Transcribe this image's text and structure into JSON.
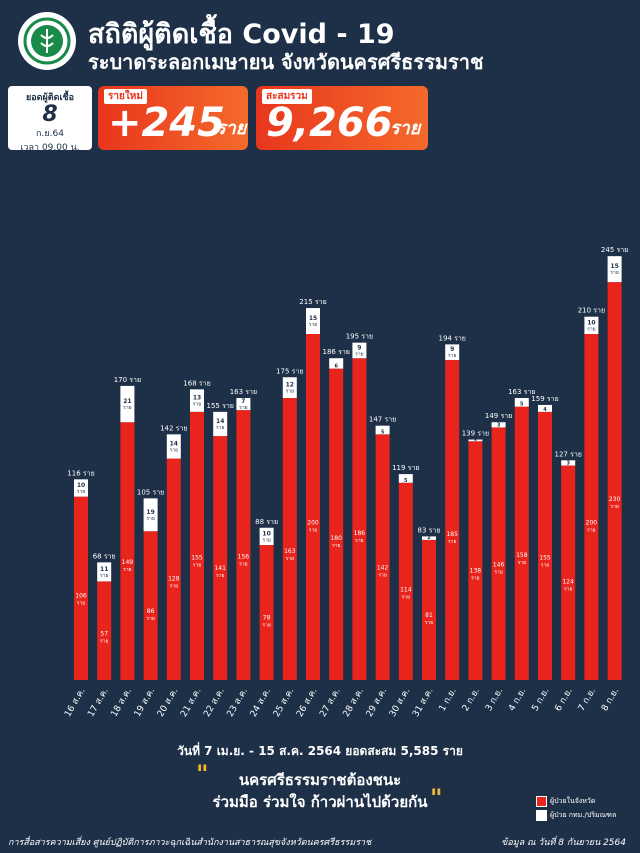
{
  "header": {
    "title": "สถิติผู้ติดเชื้อ Covid - 19",
    "subtitle": "ระบาดระลอกเมษายน จังหวัดนครศรีธรรมราช",
    "logo_icon": "ministry-of-public-health-logo"
  },
  "date_box": {
    "label": "ยอดผู้ติดเชื้อ",
    "day": "8",
    "month": "ก.ย.64",
    "time": "เวลา 09.00 น."
  },
  "new_cases": {
    "label": "รายใหม่",
    "value": "+245",
    "unit": "ราย"
  },
  "total_cases": {
    "label": "สะสมรวม",
    "value": "9,266",
    "unit": "ราย"
  },
  "colors": {
    "background": "#1d3047",
    "bar_in_province": "#e8241c",
    "bar_other": "#ffffff",
    "accent": "#f2b632"
  },
  "chart_data": {
    "type": "bar",
    "stacked": true,
    "categories": [
      "16 ส.ค.",
      "17 ส.ค.",
      "18 ส.ค.",
      "19 ส.ค.",
      "20 ส.ค.",
      "21 ส.ค.",
      "22 ส.ค.",
      "23 ส.ค.",
      "24 ส.ค.",
      "25 ส.ค.",
      "26 ส.ค.",
      "27 ส.ค.",
      "28 ส.ค.",
      "29 ส.ค.",
      "30 ส.ค.",
      "31 ส.ค.",
      "1 ก.ย.",
      "2 ก.ย.",
      "3 ก.ย.",
      "4 ก.ย.",
      "5 ก.ย.",
      "6 ก.ย.",
      "7 ก.ย.",
      "8 ก.ย."
    ],
    "series": [
      {
        "name": "ผู้ป่วยในจังหวัด",
        "values": [
          106,
          57,
          149,
          86,
          128,
          155,
          141,
          156,
          78,
          163,
          200,
          180,
          186,
          142,
          114,
          81,
          185,
          138,
          146,
          158,
          155,
          124,
          200,
          230
        ]
      },
      {
        "name": "ผู้ป่วย กทม./ปริมณฑล",
        "values": [
          10,
          11,
          21,
          19,
          14,
          13,
          14,
          7,
          10,
          12,
          15,
          6,
          9,
          5,
          5,
          2,
          9,
          1,
          3,
          5,
          4,
          3,
          10,
          15
        ]
      }
    ],
    "totals": [
      116,
      68,
      170,
      105,
      142,
      168,
      155,
      163,
      88,
      175,
      215,
      186,
      195,
      147,
      119,
      83,
      194,
      139,
      149,
      163,
      159,
      127,
      210,
      245
    ],
    "unit": "ราย",
    "ylim": [
      0,
      250
    ],
    "grid": false,
    "legend_position": "bottom-right"
  },
  "summary": "วันที่ 7 เม.ย. - 15 ส.ค. 2564 ยอดสะสม 5,585 ราย",
  "slogan": {
    "line1": "นครศรีธรรมราชต้องชนะ",
    "line2": "ร่วมมือ ร่วมใจ ก้าวผ่านไปด้วยกัน"
  },
  "footer": {
    "left": "การสื่อสารความเสี่ยง ศูนย์ปฏิบัติการภาวะฉุกเฉินสำนักงานสาธารณสุขจังหวัดนครศรีธรรมราช",
    "right": "ข้อมูล ณ วันที่ 8 กันยายน 2564"
  }
}
